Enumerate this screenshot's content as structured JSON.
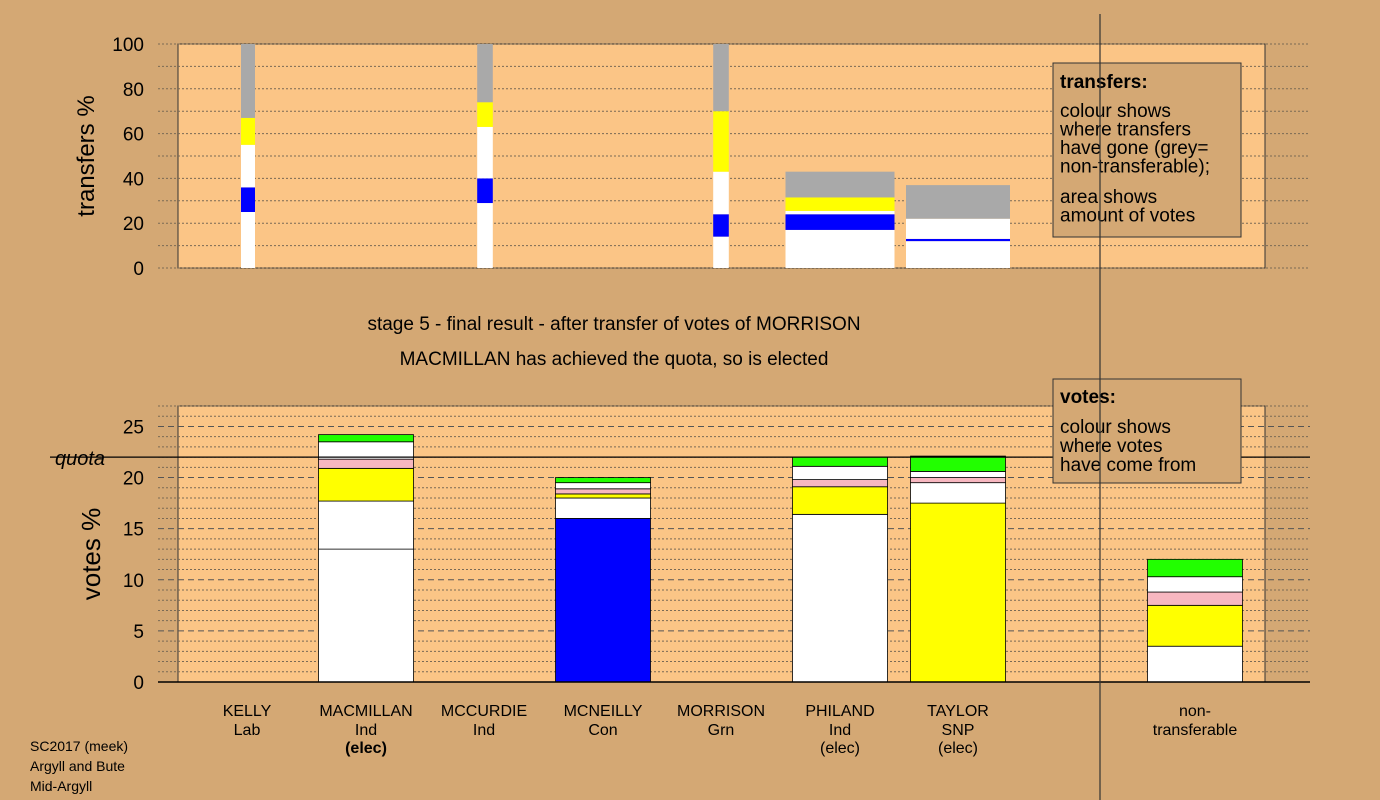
{
  "footer": [
    "SC2017 (meek)",
    "Argyll and Bute",
    "Mid-Argyll"
  ],
  "colors": {
    "background": "#d4a874",
    "panel": "#fbc586",
    "grey": "#a9a9a9",
    "yellow": "#ffff00",
    "white": "#ffffff",
    "blue": "#0000ff",
    "pink": "#f7b7c0",
    "green": "#22ff00"
  },
  "chart_data": [
    {
      "type": "bar",
      "ylabel": "transfers %",
      "ylim": [
        0,
        100
      ],
      "yticks": [
        0,
        20,
        40,
        60,
        80,
        100
      ],
      "legend": {
        "title": "transfers:",
        "lines1": [
          "colour shows",
          "where transfers",
          "have gone (grey=",
          "non-transferable);"
        ],
        "lines2": [
          "area shows",
          "amount of votes"
        ]
      },
      "bars": [
        {
          "candidate": "KELLY",
          "width_share": 0.13,
          "segments": [
            {
              "color": "white",
              "value": 25
            },
            {
              "color": "blue",
              "value": 11
            },
            {
              "color": "white",
              "value": 19
            },
            {
              "color": "yellow",
              "value": 12
            },
            {
              "color": "grey",
              "value": 33
            }
          ]
        },
        {
          "candidate": "MCCURDIE",
          "width_share": 0.2,
          "segments": [
            {
              "color": "white",
              "value": 29
            },
            {
              "color": "blue",
              "value": 11
            },
            {
              "color": "white",
              "value": 23
            },
            {
              "color": "yellow",
              "value": 11
            },
            {
              "color": "grey",
              "value": 26
            }
          ]
        },
        {
          "candidate": "MORRISON",
          "width_share": 0.2,
          "segments": [
            {
              "color": "white",
              "value": 14
            },
            {
              "color": "blue",
              "value": 10
            },
            {
              "color": "white",
              "value": 19
            },
            {
              "color": "yellow",
              "value": 27
            },
            {
              "color": "grey",
              "value": 30
            }
          ]
        },
        {
          "candidate": "PHILAND",
          "width_share": 1,
          "segments": [
            {
              "color": "white",
              "value": 17
            },
            {
              "color": "blue",
              "value": 7
            },
            {
              "color": "white",
              "value": 1.5
            },
            {
              "color": "yellow",
              "value": 6
            },
            {
              "color": "grey",
              "value": 11.5
            }
          ]
        },
        {
          "candidate": "TAYLOR",
          "width_share": 1,
          "segments": [
            {
              "color": "white",
              "value": 12
            },
            {
              "color": "blue",
              "value": 1
            },
            {
              "color": "white",
              "value": 9
            },
            {
              "color": "grey",
              "value": 15
            }
          ]
        }
      ]
    },
    {
      "type": "bar",
      "title": "stage 5 - final result - after transfer of votes of MORRISON",
      "subtitle": "MACMILLAN has achieved the quota, so is elected",
      "ylabel": "votes %",
      "ylim": [
        0,
        27
      ],
      "yticks": [
        0,
        5,
        10,
        15,
        20,
        25
      ],
      "quota": 22,
      "quota_label": "quota",
      "legend": {
        "title": "votes:",
        "lines1": [
          "colour shows",
          "where votes",
          "have come from"
        ]
      },
      "categories": [
        {
          "name": "KELLY",
          "party": "Lab",
          "status": ""
        },
        {
          "name": "MACMILLAN",
          "party": "Ind",
          "status": "(elec)",
          "bold_status": true
        },
        {
          "name": "MCCURDIE",
          "party": "Ind",
          "status": ""
        },
        {
          "name": "MCNEILLY",
          "party": "Con",
          "status": ""
        },
        {
          "name": "MORRISON",
          "party": "Grn",
          "status": ""
        },
        {
          "name": "PHILAND",
          "party": "Ind",
          "status": "(elec)"
        },
        {
          "name": "TAYLOR",
          "party": "SNP",
          "status": "(elec)"
        },
        {
          "name": "non-",
          "party": "transferable",
          "status": ""
        }
      ],
      "stacks": [
        [],
        [
          {
            "color": "white",
            "value": 13
          },
          {
            "color": "white",
            "value": 4.7
          },
          {
            "color": "yellow",
            "value": 3.2
          },
          {
            "color": "pink",
            "value": 0.9
          },
          {
            "color": "white",
            "value": 1.7
          },
          {
            "color": "green",
            "value": 0.7
          }
        ],
        [],
        [
          {
            "color": "blue",
            "value": 16
          },
          {
            "color": "white",
            "value": 2
          },
          {
            "color": "yellow",
            "value": 0.4
          },
          {
            "color": "pink",
            "value": 0.5
          },
          {
            "color": "white",
            "value": 0.6
          },
          {
            "color": "green",
            "value": 0.5
          }
        ],
        [],
        [
          {
            "color": "white",
            "value": 16.4
          },
          {
            "color": "yellow",
            "value": 2.7
          },
          {
            "color": "pink",
            "value": 0.7
          },
          {
            "color": "white",
            "value": 1.3
          },
          {
            "color": "green",
            "value": 0.9
          }
        ],
        [
          {
            "color": "yellow",
            "value": 17.5
          },
          {
            "color": "white",
            "value": 2
          },
          {
            "color": "pink",
            "value": 0.5
          },
          {
            "color": "white",
            "value": 0.6
          },
          {
            "color": "green",
            "value": 1.5
          }
        ],
        [
          {
            "color": "white",
            "value": 3.5
          },
          {
            "color": "yellow",
            "value": 4
          },
          {
            "color": "pink",
            "value": 1.3
          },
          {
            "color": "white",
            "value": 1.5
          },
          {
            "color": "green",
            "value": 1.7
          }
        ]
      ]
    }
  ]
}
